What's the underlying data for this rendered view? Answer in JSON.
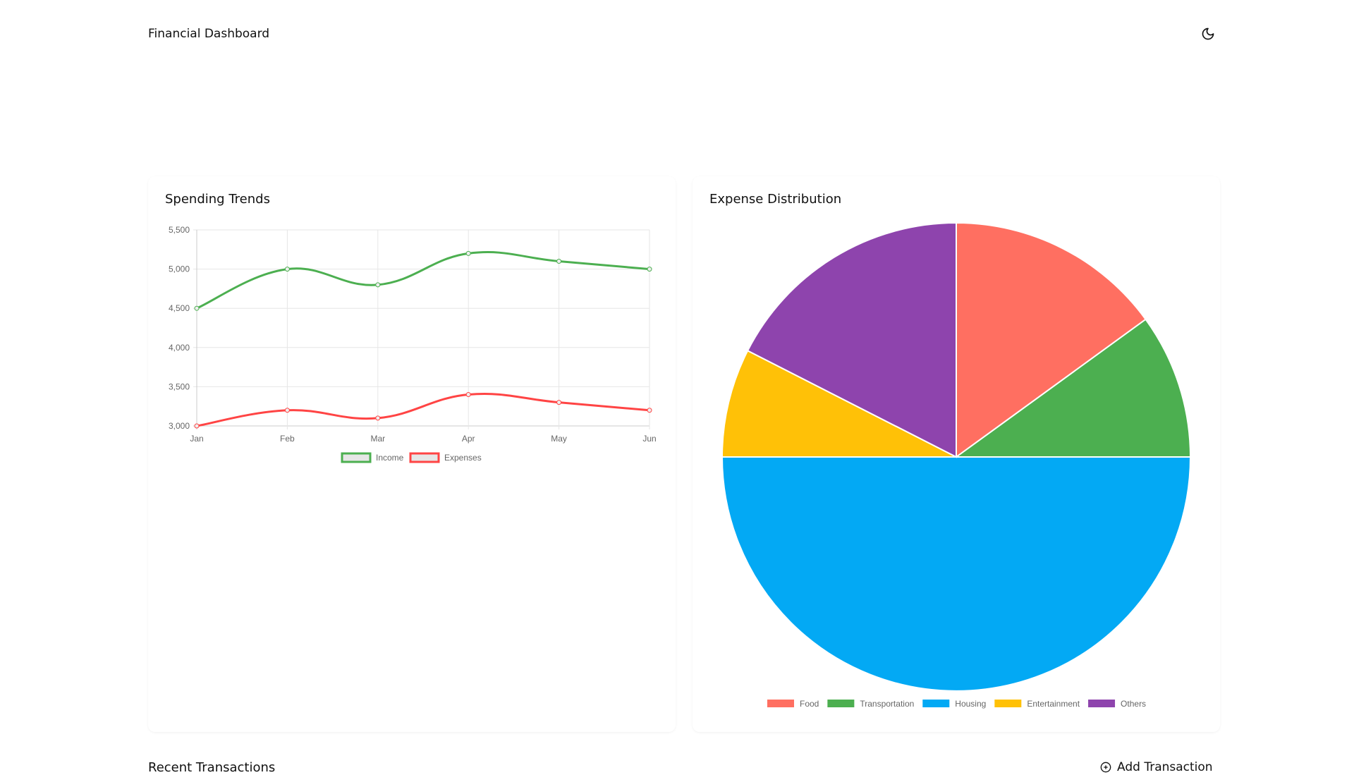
{
  "header": {
    "title": "Financial Dashboard",
    "theme_toggle_icon": "moon-icon"
  },
  "colors": {
    "income": "#4caf50",
    "expenses": "#ff4444"
  },
  "chart_data": [
    {
      "type": "line",
      "title": "Spending Trends",
      "categories": [
        "Jan",
        "Feb",
        "Mar",
        "Apr",
        "May",
        "Jun"
      ],
      "series": [
        {
          "name": "Income",
          "values": [
            4500,
            5000,
            4800,
            5200,
            5100,
            5000
          ],
          "color": "#4caf50"
        },
        {
          "name": "Expenses",
          "values": [
            3000,
            3200,
            3100,
            3400,
            3300,
            3200
          ],
          "color": "#ff4444"
        }
      ],
      "ylim": [
        3000,
        5500
      ],
      "yticks": [
        "5,500",
        "5,000",
        "4,500",
        "4,000",
        "3,500",
        "3,000"
      ],
      "grid": true,
      "legend": "bottom"
    },
    {
      "type": "pie",
      "title": "Expense Distribution",
      "categories": [
        "Food",
        "Transportation",
        "Housing",
        "Entertainment",
        "Others"
      ],
      "values": [
        15,
        10,
        50,
        7.5,
        17.5
      ],
      "colors": [
        "#ff6f61",
        "#4caf50",
        "#03a9f4",
        "#ffc107",
        "#8e44ad"
      ],
      "legend": "bottom"
    }
  ],
  "transactions": {
    "title": "Recent Transactions",
    "add_label": "Add Transaction"
  }
}
